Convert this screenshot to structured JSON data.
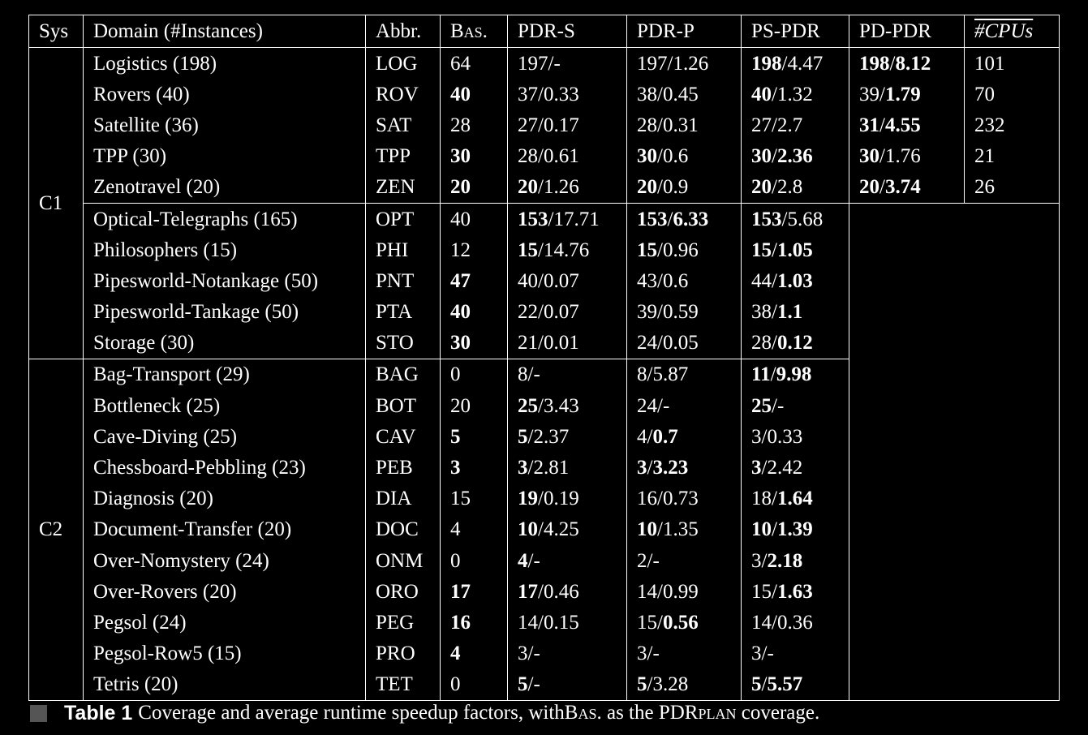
{
  "table": {
    "headers": {
      "sys": "Sys",
      "domain": "Domain (#Instances)",
      "abbr": "Abbr.",
      "bas": "Bas.",
      "pdr_s": "PDR-S",
      "pdr_p": "PDR-P",
      "ps_pdr": "PS-PDR",
      "pd_pdr": "PD-PDR",
      "cpus": "#CPUs"
    },
    "groups": {
      "c1": "C1",
      "c2": "C2"
    },
    "rows": [
      {
        "domain": "Logistics (198)",
        "abbr": "LOG",
        "bas": "64",
        "bas_bold": false,
        "pdr_s": {
          "cov": "197",
          "cov_bold": false,
          "spd": "-",
          "spd_bold": false
        },
        "pdr_p": {
          "cov": "197",
          "cov_bold": false,
          "spd": "1.26",
          "spd_bold": false
        },
        "ps_pdr": {
          "cov": "198",
          "cov_bold": true,
          "spd": "4.47",
          "spd_bold": false
        },
        "pd_pdr": {
          "cov": "198",
          "cov_bold": true,
          "spd": "8.12",
          "spd_bold": true
        },
        "cpus": "101"
      },
      {
        "domain": "Rovers (40)",
        "abbr": "ROV",
        "bas": "40",
        "bas_bold": true,
        "pdr_s": {
          "cov": "37",
          "cov_bold": false,
          "spd": "0.33",
          "spd_bold": false
        },
        "pdr_p": {
          "cov": "38",
          "cov_bold": false,
          "spd": "0.45",
          "spd_bold": false
        },
        "ps_pdr": {
          "cov": "40",
          "cov_bold": true,
          "spd": "1.32",
          "spd_bold": false
        },
        "pd_pdr": {
          "cov": "39",
          "cov_bold": false,
          "spd": "1.79",
          "spd_bold": true
        },
        "cpus": "70"
      },
      {
        "domain": "Satellite (36)",
        "abbr": "SAT",
        "bas": "28",
        "bas_bold": false,
        "pdr_s": {
          "cov": "27",
          "cov_bold": false,
          "spd": "0.17",
          "spd_bold": false
        },
        "pdr_p": {
          "cov": "28",
          "cov_bold": false,
          "spd": "0.31",
          "spd_bold": false
        },
        "ps_pdr": {
          "cov": "27",
          "cov_bold": false,
          "spd": "2.7",
          "spd_bold": false
        },
        "pd_pdr": {
          "cov": "31",
          "cov_bold": true,
          "spd": "4.55",
          "spd_bold": true
        },
        "cpus": "232"
      },
      {
        "domain": "TPP (30)",
        "abbr": "TPP",
        "bas": "30",
        "bas_bold": true,
        "pdr_s": {
          "cov": "28",
          "cov_bold": false,
          "spd": "0.61",
          "spd_bold": false
        },
        "pdr_p": {
          "cov": "30",
          "cov_bold": true,
          "spd": "0.6",
          "spd_bold": false
        },
        "ps_pdr": {
          "cov": "30",
          "cov_bold": true,
          "spd": "2.36",
          "spd_bold": true
        },
        "pd_pdr": {
          "cov": "30",
          "cov_bold": true,
          "spd": "1.76",
          "spd_bold": false
        },
        "cpus": "21"
      },
      {
        "domain": "Zenotravel (20)",
        "abbr": "ZEN",
        "bas": "20",
        "bas_bold": true,
        "pdr_s": {
          "cov": "20",
          "cov_bold": true,
          "spd": "1.26",
          "spd_bold": false
        },
        "pdr_p": {
          "cov": "20",
          "cov_bold": true,
          "spd": "0.9",
          "spd_bold": false
        },
        "ps_pdr": {
          "cov": "20",
          "cov_bold": true,
          "spd": "2.8",
          "spd_bold": false
        },
        "pd_pdr": {
          "cov": "20",
          "cov_bold": true,
          "spd": "3.74",
          "spd_bold": true
        },
        "cpus": "26"
      },
      {
        "domain": "Optical-Telegraphs (165)",
        "abbr": "OPT",
        "bas": "40",
        "bas_bold": false,
        "pdr_s": {
          "cov": "153",
          "cov_bold": true,
          "spd": "17.71",
          "spd_bold": false
        },
        "pdr_p": {
          "cov": "153",
          "cov_bold": true,
          "spd": "6.33",
          "spd_bold": true
        },
        "ps_pdr": {
          "cov": "153",
          "cov_bold": true,
          "spd": "5.68",
          "spd_bold": false
        }
      },
      {
        "domain": "Philosophers (15)",
        "abbr": "PHI",
        "bas": "12",
        "bas_bold": false,
        "pdr_s": {
          "cov": "15",
          "cov_bold": true,
          "spd": "14.76",
          "spd_bold": false
        },
        "pdr_p": {
          "cov": "15",
          "cov_bold": true,
          "spd": "0.96",
          "spd_bold": false
        },
        "ps_pdr": {
          "cov": "15",
          "cov_bold": true,
          "spd": "1.05",
          "spd_bold": true
        }
      },
      {
        "domain": "Pipesworld-Notankage (50)",
        "abbr": "PNT",
        "bas": "47",
        "bas_bold": true,
        "pdr_s": {
          "cov": "40",
          "cov_bold": false,
          "spd": "0.07",
          "spd_bold": false
        },
        "pdr_p": {
          "cov": "43",
          "cov_bold": false,
          "spd": "0.6",
          "spd_bold": false
        },
        "ps_pdr": {
          "cov": "44",
          "cov_bold": false,
          "spd": "1.03",
          "spd_bold": true
        }
      },
      {
        "domain": "Pipesworld-Tankage (50)",
        "abbr": "PTA",
        "bas": "40",
        "bas_bold": true,
        "pdr_s": {
          "cov": "22",
          "cov_bold": false,
          "spd": "0.07",
          "spd_bold": false
        },
        "pdr_p": {
          "cov": "39",
          "cov_bold": false,
          "spd": "0.59",
          "spd_bold": false
        },
        "ps_pdr": {
          "cov": "38",
          "cov_bold": false,
          "spd": "1.1",
          "spd_bold": true
        }
      },
      {
        "domain": "Storage (30)",
        "abbr": "STO",
        "bas": "30",
        "bas_bold": true,
        "pdr_s": {
          "cov": "21",
          "cov_bold": false,
          "spd": "0.01",
          "spd_bold": false
        },
        "pdr_p": {
          "cov": "24",
          "cov_bold": false,
          "spd": "0.05",
          "spd_bold": false
        },
        "ps_pdr": {
          "cov": "28",
          "cov_bold": false,
          "spd": "0.12",
          "spd_bold": true
        }
      },
      {
        "domain": "Bag-Transport (29)",
        "abbr": "BAG",
        "bas": "0",
        "bas_bold": false,
        "pdr_s": {
          "cov": "8",
          "cov_bold": false,
          "spd": "-",
          "spd_bold": false
        },
        "pdr_p": {
          "cov": "8",
          "cov_bold": false,
          "spd": "5.87",
          "spd_bold": false
        },
        "ps_pdr": {
          "cov": "11",
          "cov_bold": true,
          "spd": "9.98",
          "spd_bold": true
        }
      },
      {
        "domain": "Bottleneck (25)",
        "abbr": "BOT",
        "bas": "20",
        "bas_bold": false,
        "pdr_s": {
          "cov": "25",
          "cov_bold": true,
          "spd": "3.43",
          "spd_bold": false
        },
        "pdr_p": {
          "cov": "24",
          "cov_bold": false,
          "spd": "-",
          "spd_bold": false
        },
        "ps_pdr": {
          "cov": "25",
          "cov_bold": true,
          "spd": "-",
          "spd_bold": false
        }
      },
      {
        "domain": "Cave-Diving (25)",
        "abbr": "CAV",
        "bas": "5",
        "bas_bold": true,
        "pdr_s": {
          "cov": "5",
          "cov_bold": true,
          "spd": "2.37",
          "spd_bold": false
        },
        "pdr_p": {
          "cov": "4",
          "cov_bold": false,
          "spd": "0.7",
          "spd_bold": true
        },
        "ps_pdr": {
          "cov": "3",
          "cov_bold": false,
          "spd": "0.33",
          "spd_bold": false
        }
      },
      {
        "domain": "Chessboard-Pebbling (23)",
        "abbr": "PEB",
        "bas": "3",
        "bas_bold": true,
        "pdr_s": {
          "cov": "3",
          "cov_bold": true,
          "spd": "2.81",
          "spd_bold": false
        },
        "pdr_p": {
          "cov": "3",
          "cov_bold": true,
          "spd": "3.23",
          "spd_bold": true
        },
        "ps_pdr": {
          "cov": "3",
          "cov_bold": true,
          "spd": "2.42",
          "spd_bold": false
        }
      },
      {
        "domain": "Diagnosis (20)",
        "abbr": "DIA",
        "bas": "15",
        "bas_bold": false,
        "pdr_s": {
          "cov": "19",
          "cov_bold": true,
          "spd": "0.19",
          "spd_bold": false
        },
        "pdr_p": {
          "cov": "16",
          "cov_bold": false,
          "spd": "0.73",
          "spd_bold": false
        },
        "ps_pdr": {
          "cov": "18",
          "cov_bold": false,
          "spd": "1.64",
          "spd_bold": true
        }
      },
      {
        "domain": "Document-Transfer (20)",
        "abbr": "DOC",
        "bas": "4",
        "bas_bold": false,
        "pdr_s": {
          "cov": "10",
          "cov_bold": true,
          "spd": "4.25",
          "spd_bold": false
        },
        "pdr_p": {
          "cov": "10",
          "cov_bold": true,
          "spd": "1.35",
          "spd_bold": false
        },
        "ps_pdr": {
          "cov": "10",
          "cov_bold": true,
          "spd": "1.39",
          "spd_bold": true
        }
      },
      {
        "domain": "Over-Nomystery (24)",
        "abbr": "ONM",
        "bas": "0",
        "bas_bold": false,
        "pdr_s": {
          "cov": "4",
          "cov_bold": true,
          "spd": "-",
          "spd_bold": false
        },
        "pdr_p": {
          "cov": "2",
          "cov_bold": false,
          "spd": "-",
          "spd_bold": false
        },
        "ps_pdr": {
          "cov": "3",
          "cov_bold": false,
          "spd": "2.18",
          "spd_bold": true
        }
      },
      {
        "domain": "Over-Rovers (20)",
        "abbr": "ORO",
        "bas": "17",
        "bas_bold": true,
        "pdr_s": {
          "cov": "17",
          "cov_bold": true,
          "spd": "0.46",
          "spd_bold": false
        },
        "pdr_p": {
          "cov": "14",
          "cov_bold": false,
          "spd": "0.99",
          "spd_bold": false
        },
        "ps_pdr": {
          "cov": "15",
          "cov_bold": false,
          "spd": "1.63",
          "spd_bold": true
        }
      },
      {
        "domain": "Pegsol (24)",
        "abbr": "PEG",
        "bas": "16",
        "bas_bold": true,
        "pdr_s": {
          "cov": "14",
          "cov_bold": false,
          "spd": "0.15",
          "spd_bold": false
        },
        "pdr_p": {
          "cov": "15",
          "cov_bold": false,
          "spd": "0.56",
          "spd_bold": true
        },
        "ps_pdr": {
          "cov": "14",
          "cov_bold": false,
          "spd": "0.36",
          "spd_bold": false
        }
      },
      {
        "domain": "Pegsol-Row5 (15)",
        "abbr": "PRO",
        "bas": "4",
        "bas_bold": true,
        "pdr_s": {
          "cov": "3",
          "cov_bold": false,
          "spd": "-",
          "spd_bold": false
        },
        "pdr_p": {
          "cov": "3",
          "cov_bold": false,
          "spd": "-",
          "spd_bold": false
        },
        "ps_pdr": {
          "cov": "3",
          "cov_bold": false,
          "spd": "-",
          "spd_bold": false
        }
      },
      {
        "domain": "Tetris (20)",
        "abbr": "TET",
        "bas": "0",
        "bas_bold": false,
        "pdr_s": {
          "cov": "5",
          "cov_bold": true,
          "spd": "-",
          "spd_bold": false
        },
        "pdr_p": {
          "cov": "5",
          "cov_bold": true,
          "spd": "3.28",
          "spd_bold": false
        },
        "ps_pdr": {
          "cov": "5",
          "cov_bold": true,
          "spd": "5.57",
          "spd_bold": true
        }
      }
    ]
  },
  "caption": {
    "label": "Table 1",
    "text_before": "Coverage and average runtime speedup factors, with ",
    "bas": "Bas.",
    "text_middle": " as the PDR",
    "plan": "plan",
    "text_after": " coverage."
  }
}
